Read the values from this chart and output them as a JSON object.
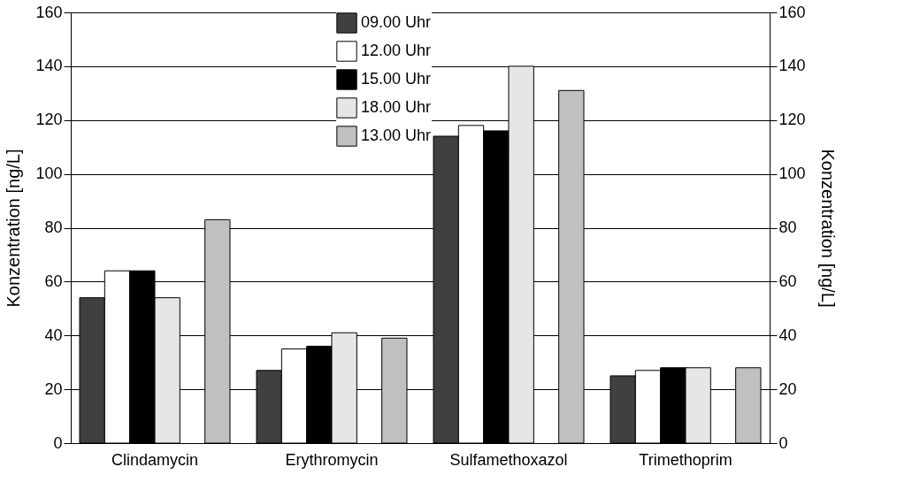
{
  "chart_data": {
    "type": "bar",
    "categories": [
      "Clindamycin",
      "Erythromycin",
      "Sulfamethoxazol",
      "Trimethoprim"
    ],
    "series": [
      {
        "name": "09.00 Uhr",
        "color": "#404040",
        "values": [
          54,
          27,
          114,
          25
        ]
      },
      {
        "name": "12.00 Uhr",
        "color": "#ffffff",
        "values": [
          64,
          35,
          118,
          27
        ]
      },
      {
        "name": "15.00 Uhr",
        "color": "#000000",
        "values": [
          64,
          36,
          116,
          28
        ]
      },
      {
        "name": "18.00 Uhr",
        "color": "#e6e6e6",
        "values": [
          54,
          41,
          140,
          28
        ]
      },
      {
        "name": "13.00 Uhr",
        "color": "#c0c0c0",
        "values": [
          83,
          39,
          131,
          28
        ]
      }
    ],
    "ylabel": "Konzentration [ng/L]",
    "y2label": "Konzentration [ng/L]",
    "ylim": [
      0,
      160
    ],
    "yticks": [
      0,
      20,
      40,
      60,
      80,
      100,
      120,
      140,
      160
    ],
    "y2lim": [
      0,
      160
    ],
    "y2ticks": [
      0,
      20,
      40,
      60,
      80,
      100,
      120,
      140,
      160
    ],
    "grid": "y",
    "legend": "top"
  }
}
